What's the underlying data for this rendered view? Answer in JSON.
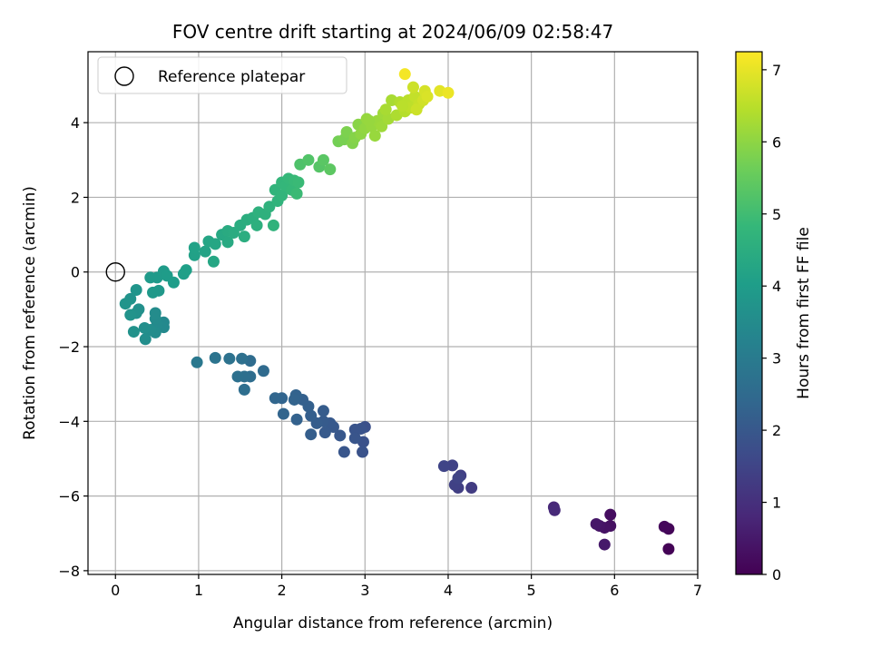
{
  "chart_data": {
    "type": "scatter",
    "title": "FOV centre drift starting at 2024/06/09 02:58:47",
    "xlabel": "Angular distance from reference (arcmin)",
    "ylabel": "Rotation from reference (arcmin)",
    "xlim": [
      -0.33,
      7.0
    ],
    "ylim": [
      -8.1,
      5.9
    ],
    "xticks": [
      0,
      1,
      2,
      3,
      4,
      5,
      6,
      7
    ],
    "yticks": [
      -8,
      -6,
      -4,
      -2,
      0,
      2,
      4
    ],
    "grid": true,
    "legend": {
      "placement": "upper-left",
      "entries": [
        "Reference platepar"
      ]
    },
    "reference_point": {
      "x": 0,
      "y": 0
    },
    "colorbar": {
      "label": "Hours from first FF file",
      "range": [
        0,
        7.25
      ],
      "ticks": [
        0,
        1,
        2,
        3,
        4,
        5,
        6,
        7
      ],
      "colormap": "viridis",
      "stops": [
        "#440154",
        "#482878",
        "#3e4989",
        "#31688e",
        "#26828e",
        "#1f9e89",
        "#35b779",
        "#6ece58",
        "#b5de2b",
        "#fde725"
      ]
    },
    "points": [
      {
        "x": 6.65,
        "y": -7.42,
        "t": 0.05
      },
      {
        "x": 6.65,
        "y": -6.88,
        "t": 0.1
      },
      {
        "x": 6.6,
        "y": -6.82,
        "t": 0.15
      },
      {
        "x": 5.95,
        "y": -6.5,
        "t": 0.25
      },
      {
        "x": 5.95,
        "y": -6.8,
        "t": 0.3
      },
      {
        "x": 5.88,
        "y": -6.85,
        "t": 0.35
      },
      {
        "x": 5.82,
        "y": -6.8,
        "t": 0.4
      },
      {
        "x": 5.78,
        "y": -6.75,
        "t": 0.45
      },
      {
        "x": 5.88,
        "y": -7.3,
        "t": 0.5
      },
      {
        "x": 5.27,
        "y": -6.3,
        "t": 0.8
      },
      {
        "x": 5.28,
        "y": -6.38,
        "t": 0.85
      },
      {
        "x": 4.28,
        "y": -5.78,
        "t": 1.3
      },
      {
        "x": 4.12,
        "y": -5.78,
        "t": 1.35
      },
      {
        "x": 4.15,
        "y": -5.45,
        "t": 1.4
      },
      {
        "x": 4.08,
        "y": -5.7,
        "t": 1.42
      },
      {
        "x": 4.05,
        "y": -5.18,
        "t": 1.45
      },
      {
        "x": 3.95,
        "y": -5.2,
        "t": 1.5
      },
      {
        "x": 4.12,
        "y": -5.52,
        "t": 1.48
      },
      {
        "x": 3.0,
        "y": -4.15,
        "t": 1.8
      },
      {
        "x": 2.98,
        "y": -4.55,
        "t": 1.82
      },
      {
        "x": 2.97,
        "y": -4.82,
        "t": 1.85
      },
      {
        "x": 2.95,
        "y": -4.2,
        "t": 1.88
      },
      {
        "x": 2.88,
        "y": -4.22,
        "t": 1.9
      },
      {
        "x": 2.88,
        "y": -4.45,
        "t": 1.92
      },
      {
        "x": 2.75,
        "y": -4.82,
        "t": 1.95
      },
      {
        "x": 2.7,
        "y": -4.38,
        "t": 1.98
      },
      {
        "x": 2.62,
        "y": -4.15,
        "t": 2.0
      },
      {
        "x": 2.58,
        "y": -4.05,
        "t": 2.02
      },
      {
        "x": 2.52,
        "y": -4.3,
        "t": 2.05
      },
      {
        "x": 2.5,
        "y": -4.0,
        "t": 2.08
      },
      {
        "x": 2.5,
        "y": -3.72,
        "t": 2.1
      },
      {
        "x": 2.42,
        "y": -4.05,
        "t": 2.12
      },
      {
        "x": 2.35,
        "y": -4.35,
        "t": 2.15
      },
      {
        "x": 2.35,
        "y": -3.85,
        "t": 2.18
      },
      {
        "x": 2.32,
        "y": -3.6,
        "t": 2.2
      },
      {
        "x": 2.25,
        "y": -3.42,
        "t": 2.22
      },
      {
        "x": 2.18,
        "y": -3.95,
        "t": 2.25
      },
      {
        "x": 2.17,
        "y": -3.3,
        "t": 2.28
      },
      {
        "x": 2.15,
        "y": -3.42,
        "t": 2.3
      },
      {
        "x": 2.02,
        "y": -3.8,
        "t": 2.33
      },
      {
        "x": 2.0,
        "y": -3.38,
        "t": 2.35
      },
      {
        "x": 1.92,
        "y": -3.38,
        "t": 2.38
      },
      {
        "x": 1.78,
        "y": -2.65,
        "t": 2.5
      },
      {
        "x": 1.62,
        "y": -2.38,
        "t": 2.55
      },
      {
        "x": 1.62,
        "y": -2.8,
        "t": 2.58
      },
      {
        "x": 1.55,
        "y": -3.15,
        "t": 2.6
      },
      {
        "x": 1.55,
        "y": -2.8,
        "t": 2.62
      },
      {
        "x": 1.52,
        "y": -2.32,
        "t": 2.65
      },
      {
        "x": 1.47,
        "y": -2.8,
        "t": 2.68
      },
      {
        "x": 1.37,
        "y": -2.32,
        "t": 2.72
      },
      {
        "x": 1.2,
        "y": -2.3,
        "t": 2.8
      },
      {
        "x": 0.98,
        "y": -2.42,
        "t": 2.9
      },
      {
        "x": 0.58,
        "y": -1.35,
        "t": 3.4
      },
      {
        "x": 0.58,
        "y": -1.48,
        "t": 3.42
      },
      {
        "x": 0.5,
        "y": -1.4,
        "t": 3.45
      },
      {
        "x": 0.48,
        "y": -1.25,
        "t": 3.48
      },
      {
        "x": 0.48,
        "y": -1.1,
        "t": 3.5
      },
      {
        "x": 0.48,
        "y": -1.62,
        "t": 3.52
      },
      {
        "x": 0.42,
        "y": -1.55,
        "t": 3.55
      },
      {
        "x": 0.36,
        "y": -1.8,
        "t": 3.58
      },
      {
        "x": 0.35,
        "y": -1.5,
        "t": 3.6
      },
      {
        "x": 0.28,
        "y": -1.0,
        "t": 3.62
      },
      {
        "x": 0.25,
        "y": -1.1,
        "t": 3.65
      },
      {
        "x": 0.22,
        "y": -1.6,
        "t": 3.68
      },
      {
        "x": 0.18,
        "y": -1.15,
        "t": 3.7
      },
      {
        "x": 0.18,
        "y": -0.72,
        "t": 3.72
      },
      {
        "x": 0.12,
        "y": -0.85,
        "t": 3.75
      },
      {
        "x": 0.25,
        "y": -0.48,
        "t": 3.78
      },
      {
        "x": 0.52,
        "y": -0.5,
        "t": 3.85
      },
      {
        "x": 0.45,
        "y": -0.55,
        "t": 3.88
      },
      {
        "x": 0.42,
        "y": -0.15,
        "t": 3.9
      },
      {
        "x": 0.5,
        "y": -0.15,
        "t": 3.92
      },
      {
        "x": 0.58,
        "y": 0.02,
        "t": 3.95
      },
      {
        "x": 0.62,
        "y": -0.1,
        "t": 3.98
      },
      {
        "x": 0.7,
        "y": -0.28,
        "t": 4.0
      },
      {
        "x": 0.82,
        "y": -0.05,
        "t": 4.05
      },
      {
        "x": 0.85,
        "y": 0.05,
        "t": 4.08
      },
      {
        "x": 0.95,
        "y": 0.45,
        "t": 4.12
      },
      {
        "x": 0.95,
        "y": 0.65,
        "t": 4.15
      },
      {
        "x": 1.08,
        "y": 0.55,
        "t": 4.2
      },
      {
        "x": 1.12,
        "y": 0.82,
        "t": 4.25
      },
      {
        "x": 1.18,
        "y": 0.28,
        "t": 4.28
      },
      {
        "x": 1.2,
        "y": 0.75,
        "t": 4.3
      },
      {
        "x": 1.28,
        "y": 1.0,
        "t": 4.35
      },
      {
        "x": 1.35,
        "y": 0.8,
        "t": 4.38
      },
      {
        "x": 1.35,
        "y": 1.1,
        "t": 4.42
      },
      {
        "x": 1.42,
        "y": 1.05,
        "t": 4.45
      },
      {
        "x": 1.5,
        "y": 1.25,
        "t": 4.48
      },
      {
        "x": 1.55,
        "y": 0.95,
        "t": 4.5
      },
      {
        "x": 1.58,
        "y": 1.4,
        "t": 4.52
      },
      {
        "x": 1.65,
        "y": 1.45,
        "t": 4.55
      },
      {
        "x": 1.7,
        "y": 1.25,
        "t": 4.58
      },
      {
        "x": 1.72,
        "y": 1.6,
        "t": 4.6
      },
      {
        "x": 1.8,
        "y": 1.55,
        "t": 4.62
      },
      {
        "x": 1.85,
        "y": 1.75,
        "t": 4.65
      },
      {
        "x": 1.9,
        "y": 1.25,
        "t": 4.68
      },
      {
        "x": 1.95,
        "y": 1.9,
        "t": 4.7
      },
      {
        "x": 1.92,
        "y": 2.2,
        "t": 4.72
      },
      {
        "x": 2.0,
        "y": 2.05,
        "t": 4.75
      },
      {
        "x": 2.0,
        "y": 2.4,
        "t": 4.78
      },
      {
        "x": 2.05,
        "y": 2.3,
        "t": 4.8
      },
      {
        "x": 2.08,
        "y": 2.5,
        "t": 4.82
      },
      {
        "x": 2.12,
        "y": 2.2,
        "t": 4.85
      },
      {
        "x": 2.15,
        "y": 2.45,
        "t": 4.88
      },
      {
        "x": 2.2,
        "y": 2.4,
        "t": 4.9
      },
      {
        "x": 2.18,
        "y": 2.1,
        "t": 4.92
      },
      {
        "x": 2.22,
        "y": 2.88,
        "t": 5.2
      },
      {
        "x": 2.32,
        "y": 3.0,
        "t": 5.25
      },
      {
        "x": 2.45,
        "y": 2.82,
        "t": 5.3
      },
      {
        "x": 2.5,
        "y": 3.0,
        "t": 5.35
      },
      {
        "x": 2.58,
        "y": 2.75,
        "t": 5.4
      },
      {
        "x": 2.68,
        "y": 3.5,
        "t": 5.7
      },
      {
        "x": 2.75,
        "y": 3.55,
        "t": 5.75
      },
      {
        "x": 2.78,
        "y": 3.75,
        "t": 5.8
      },
      {
        "x": 2.85,
        "y": 3.45,
        "t": 5.85
      },
      {
        "x": 2.88,
        "y": 3.6,
        "t": 5.9
      },
      {
        "x": 2.92,
        "y": 3.95,
        "t": 5.95
      },
      {
        "x": 2.95,
        "y": 3.7,
        "t": 6.0
      },
      {
        "x": 3.0,
        "y": 3.85,
        "t": 6.05
      },
      {
        "x": 3.02,
        "y": 4.1,
        "t": 6.08
      },
      {
        "x": 3.08,
        "y": 3.9,
        "t": 6.1
      },
      {
        "x": 3.12,
        "y": 3.65,
        "t": 6.12
      },
      {
        "x": 3.15,
        "y": 4.05,
        "t": 6.15
      },
      {
        "x": 3.2,
        "y": 3.9,
        "t": 6.18
      },
      {
        "x": 3.22,
        "y": 4.25,
        "t": 6.2
      },
      {
        "x": 3.28,
        "y": 4.1,
        "t": 6.25
      },
      {
        "x": 3.32,
        "y": 4.6,
        "t": 6.3
      },
      {
        "x": 3.38,
        "y": 4.2,
        "t": 6.35
      },
      {
        "x": 3.42,
        "y": 4.55,
        "t": 6.4
      },
      {
        "x": 3.48,
        "y": 4.3,
        "t": 6.45
      },
      {
        "x": 3.52,
        "y": 4.6,
        "t": 6.5
      },
      {
        "x": 3.55,
        "y": 4.4,
        "t": 6.55
      },
      {
        "x": 3.6,
        "y": 4.7,
        "t": 6.6
      },
      {
        "x": 3.65,
        "y": 4.5,
        "t": 6.65
      },
      {
        "x": 3.58,
        "y": 4.95,
        "t": 6.7
      },
      {
        "x": 3.7,
        "y": 4.6,
        "t": 6.75
      },
      {
        "x": 3.72,
        "y": 4.85,
        "t": 6.8
      },
      {
        "x": 3.75,
        "y": 4.7,
        "t": 6.85
      },
      {
        "x": 3.9,
        "y": 4.85,
        "t": 6.95
      },
      {
        "x": 4.0,
        "y": 4.8,
        "t": 7.05
      },
      {
        "x": 3.48,
        "y": 5.3,
        "t": 7.15
      },
      {
        "x": 3.05,
        "y": 4.05,
        "t": 6.1
      },
      {
        "x": 3.25,
        "y": 4.35,
        "t": 6.3
      },
      {
        "x": 3.45,
        "y": 4.45,
        "t": 6.5
      },
      {
        "x": 3.62,
        "y": 4.35,
        "t": 6.7
      }
    ]
  }
}
